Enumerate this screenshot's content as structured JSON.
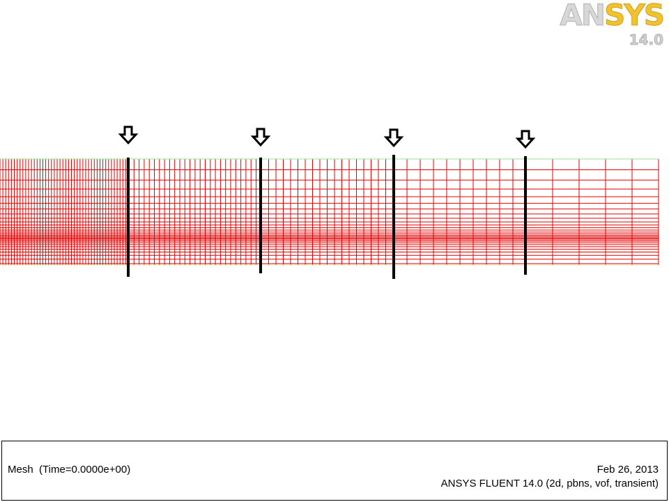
{
  "logo": {
    "brand_prefix": "AN",
    "brand_suffix": "SYS",
    "version": "14.0"
  },
  "footer": {
    "title": "Mesh  (Time=0.0000e+00)",
    "date": "Feb 26, 2013",
    "product": "ANSYS FLUENT 14.0 (2d, pbns, vof, transient)"
  }
}
